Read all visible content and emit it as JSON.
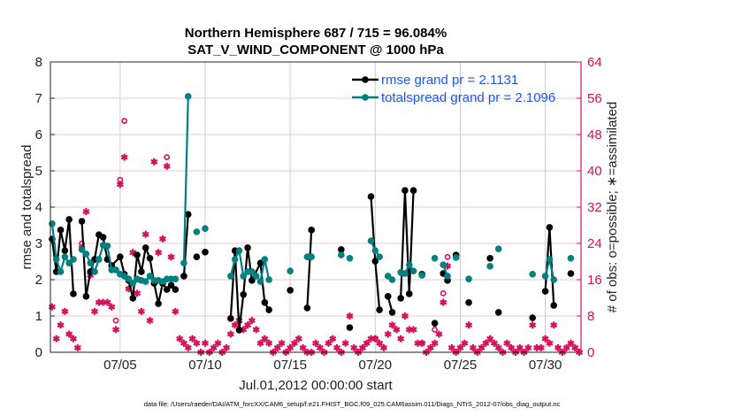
{
  "colors": {
    "rmse": "#000000",
    "spread": "#008080",
    "obs": "#d6105a",
    "legend_text": "#1a55ff",
    "grid_v": "#cccccc",
    "grid_h": "#f2c6d6"
  },
  "chart_data": {
    "type": "line",
    "title": [
      "Northern Hemisphere 687 / 715 = 96.084%",
      "SAT_V_WIND_COMPONENT @ 1000 hPa"
    ],
    "xlabel": "Jul.01,2012 00:00:00 start",
    "ylabel": "rmse and totalspread",
    "y2label": "# of obs: o=possible; ∗=assimilated",
    "footer": "data file: /Users/raeder/DAI/ATM_forcXX/CAM6_setup/f.e21.FHIST_BGC.f09_025.CAM6assim.011/Diags_NTrS_2012-07/obs_diag_output.nc",
    "xlim": [
      0.9,
      32.1
    ],
    "ylim": [
      0,
      8
    ],
    "y2lim": [
      0,
      64
    ],
    "xticks": [
      {
        "day": 5,
        "label": "07/05"
      },
      {
        "day": 10,
        "label": "07/10"
      },
      {
        "day": 15,
        "label": "07/15"
      },
      {
        "day": 20,
        "label": "07/20"
      },
      {
        "day": 25,
        "label": "07/25"
      },
      {
        "day": 30,
        "label": "07/30"
      }
    ],
    "yticks": [
      "0",
      "1",
      "2",
      "3",
      "4",
      "5",
      "6",
      "7",
      "8"
    ],
    "y2ticks": [
      "0",
      "8",
      "16",
      "24",
      "32",
      "40",
      "48",
      "56",
      "64"
    ],
    "legend": {
      "placement": "top-right",
      "entries": [
        "rmse grand pr = 2.1131",
        "totalspread grand pr = 2.1096"
      ]
    },
    "series": [
      {
        "name": "rmse",
        "segments": [
          [
            [
              1.0,
              3.12
            ],
            [
              1.25,
              2.22
            ],
            [
              1.5,
              3.37
            ],
            [
              1.75,
              2.8
            ],
            [
              2.0,
              3.66
            ],
            [
              2.25,
              1.61
            ]
          ],
          [
            [
              2.75,
              3.61
            ],
            [
              3.0,
              1.54
            ],
            [
              3.25,
              2.22
            ],
            [
              3.5,
              2.56
            ],
            [
              3.75,
              3.24
            ],
            [
              4.0,
              3.17
            ],
            [
              4.25,
              2.56
            ],
            [
              4.5,
              2.39
            ],
            [
              5.0,
              2.63
            ],
            [
              5.25,
              2.15
            ],
            [
              5.5,
              1.98
            ],
            [
              5.75,
              1.49
            ],
            [
              6.0,
              2.68
            ],
            [
              6.25,
              2.22
            ],
            [
              6.5,
              2.88
            ],
            [
              6.75,
              2.59
            ],
            [
              7.0,
              1.9
            ],
            [
              7.25,
              1.34
            ],
            [
              7.5,
              1.9
            ],
            [
              7.75,
              1.73
            ],
            [
              8.0,
              1.85
            ],
            [
              8.25,
              1.73
            ]
          ],
          [
            [
              8.75,
              2.1
            ],
            [
              9.0,
              3.8
            ]
          ],
          [
            [
              9.5,
              2.63
            ]
          ],
          [
            [
              10.0,
              2.76
            ]
          ],
          [
            [
              11.5,
              0.93
            ],
            [
              11.75,
              2.8
            ],
            [
              12.0,
              0.61
            ],
            [
              12.25,
              1.59
            ],
            [
              12.5,
              2.88
            ],
            [
              12.75,
              1.98
            ],
            [
              13.25,
              2.46
            ],
            [
              13.5,
              1.37
            ],
            [
              13.75,
              1.17
            ]
          ],
          [
            [
              15.0,
              1.71
            ]
          ],
          [
            [
              16.0,
              1.22
            ],
            [
              16.25,
              3.37
            ]
          ],
          [
            [
              18.0,
              2.83
            ]
          ],
          [
            [
              18.5,
              0.68
            ]
          ],
          [
            [
              19.75,
              4.29
            ],
            [
              20.0,
              2.51
            ],
            [
              20.25,
              1.17
            ]
          ],
          [
            [
              20.75,
              1.54
            ],
            [
              21.0,
              1.1
            ]
          ],
          [
            [
              21.5,
              1.49
            ],
            [
              21.75,
              4.46
            ],
            [
              22.0,
              1.61
            ],
            [
              22.25,
              4.46
            ]
          ],
          [
            [
              22.75,
              2.15
            ]
          ],
          [
            [
              23.5,
              0.8
            ]
          ],
          [
            [
              24.0,
              2.17
            ],
            [
              24.25,
              1.98
            ]
          ],
          [
            [
              24.75,
              2.68
            ]
          ],
          [
            [
              25.5,
              1.37
            ]
          ],
          [
            [
              26.75,
              2.59
            ]
          ],
          [
            [
              27.25,
              1.1
            ]
          ],
          [
            [
              29.25,
              0.95
            ]
          ],
          [
            [
              30.0,
              1.68
            ],
            [
              30.25,
              3.44
            ],
            [
              30.5,
              1.29
            ]
          ],
          [
            [
              31.5,
              2.17
            ]
          ]
        ]
      },
      {
        "name": "totalspread",
        "segments": [
          [
            [
              1.0,
              3.54
            ],
            [
              1.25,
              2.56
            ],
            [
              1.5,
              2.22
            ],
            [
              1.75,
              2.63
            ],
            [
              2.0,
              2.46
            ],
            [
              2.25,
              2.56
            ]
          ],
          [
            [
              2.75,
              2.83
            ],
            [
              3.0,
              2.71
            ],
            [
              3.25,
              2.46
            ],
            [
              3.5,
              2.22
            ],
            [
              3.75,
              2.56
            ],
            [
              4.0,
              2.95
            ],
            [
              4.25,
              2.93
            ],
            [
              4.5,
              2.27
            ],
            [
              4.75,
              2.27
            ],
            [
              5.0,
              2.15
            ],
            [
              5.25,
              2.1
            ],
            [
              5.5,
              2.02
            ],
            [
              5.75,
              1.9
            ],
            [
              6.0,
              2.02
            ],
            [
              6.25,
              1.98
            ],
            [
              6.5,
              1.95
            ],
            [
              6.75,
              2.1
            ],
            [
              7.0,
              1.98
            ],
            [
              7.25,
              1.98
            ],
            [
              7.5,
              1.95
            ],
            [
              7.75,
              2.02
            ],
            [
              8.0,
              2.02
            ],
            [
              8.25,
              2.02
            ]
          ],
          [
            [
              8.75,
              2.46
            ],
            [
              9.0,
              7.05
            ]
          ],
          [
            [
              9.5,
              3.32
            ]
          ],
          [
            [
              10.0,
              3.41
            ]
          ],
          [
            [
              11.5,
              2.1
            ],
            [
              11.75,
              2.56
            ],
            [
              12.0,
              2.8
            ],
            [
              12.25,
              2.1
            ],
            [
              12.5,
              2.22
            ],
            [
              12.75,
              2.22
            ],
            [
              13.0,
              2.1
            ]
          ],
          [
            [
              13.25,
              1.95
            ],
            [
              13.5,
              2.56
            ],
            [
              13.75,
              2.0
            ]
          ],
          [
            [
              15.0,
              2.24
            ]
          ],
          [
            [
              16.0,
              2.63
            ],
            [
              16.25,
              2.63
            ]
          ],
          [
            [
              18.0,
              2.68
            ]
          ],
          [
            [
              18.5,
              2.59
            ]
          ],
          [
            [
              19.75,
              3.07
            ],
            [
              20.0,
              2.8
            ],
            [
              20.25,
              2.63
            ]
          ],
          [
            [
              20.75,
              2.1
            ],
            [
              21.0,
              2.0
            ]
          ],
          [
            [
              21.5,
              2.2
            ],
            [
              21.75,
              2.17
            ],
            [
              22.0,
              2.41
            ],
            [
              22.25,
              2.24
            ]
          ],
          [
            [
              22.75,
              2.12
            ]
          ],
          [
            [
              23.5,
              2.59
            ]
          ],
          [
            [
              24.0,
              2.41
            ],
            [
              24.25,
              2.1
            ]
          ],
          [
            [
              24.75,
              2.61
            ]
          ],
          [
            [
              25.5,
              2.02
            ]
          ],
          [
            [
              26.75,
              2.37
            ]
          ],
          [
            [
              27.25,
              2.85
            ]
          ],
          [
            [
              29.25,
              2.15
            ]
          ],
          [
            [
              30.0,
              2.1
            ],
            [
              30.25,
              2.56
            ],
            [
              30.5,
              2.0
            ]
          ],
          [
            [
              31.5,
              2.59
            ]
          ]
        ]
      },
      {
        "name": "assimilated",
        "axis": "right",
        "start_day": 1.0,
        "step_days": 0.25,
        "values": [
          10,
          3,
          6,
          9,
          4,
          3,
          1,
          23,
          31,
          17,
          9,
          11,
          11,
          11,
          10,
          5,
          37,
          43,
          14,
          22,
          13,
          9,
          26,
          7,
          42,
          22,
          25,
          41,
          21,
          9,
          3,
          2,
          1,
          3,
          2,
          0,
          2,
          0,
          1,
          2,
          0,
          1,
          4,
          6,
          7,
          5,
          6,
          7,
          5,
          2,
          3,
          2,
          0,
          1,
          2,
          0,
          1,
          2,
          3,
          1,
          0,
          0,
          2,
          1,
          0,
          2,
          3,
          1,
          0,
          2,
          8,
          1,
          0,
          1,
          2,
          3,
          3,
          2,
          1,
          4,
          6,
          5,
          3,
          8,
          5,
          5,
          2,
          2,
          0,
          1,
          2,
          4,
          11,
          19,
          1,
          0,
          1,
          2,
          6,
          1,
          0,
          1,
          2,
          3,
          2,
          1,
          0,
          2,
          1,
          0,
          1,
          0,
          1,
          6,
          1,
          1,
          3,
          2,
          6,
          1,
          0,
          1,
          2,
          1,
          0
        ]
      },
      {
        "name": "possible",
        "axis": "right",
        "points": [
          [
            2.75,
            24
          ],
          [
            4.75,
            7
          ],
          [
            5.0,
            38
          ],
          [
            5.25,
            51
          ],
          [
            6.0,
            16
          ],
          [
            7.75,
            43
          ],
          [
            20.0,
            3
          ],
          [
            22.75,
            2
          ],
          [
            23.5,
            5
          ],
          [
            24.0,
            13
          ],
          [
            24.25,
            21
          ]
        ]
      }
    ]
  }
}
